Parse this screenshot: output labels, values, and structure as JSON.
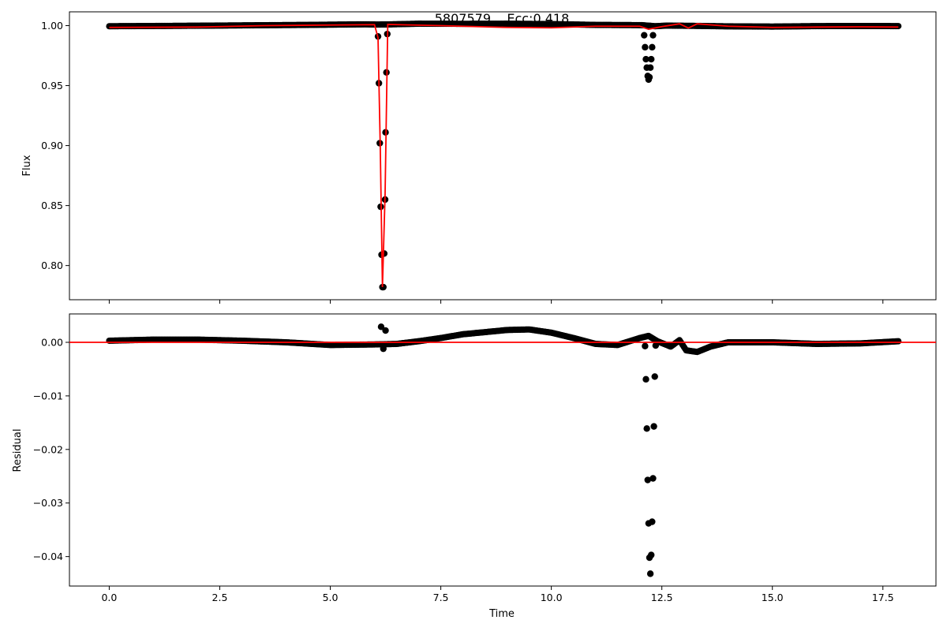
{
  "figure": {
    "title": "5807579    Ecc:0.418"
  },
  "chart_data": [
    {
      "type": "scatter",
      "panel": "top",
      "title": "5807579    Ecc:0.418",
      "xlabel": "",
      "ylabel": "Flux",
      "xlim": [
        -0.9,
        18.7
      ],
      "ylim": [
        0.7715,
        1.0115
      ],
      "xticks": [
        0.0,
        2.5,
        5.0,
        7.5,
        10.0,
        12.5,
        15.0,
        17.5
      ],
      "xtick_labels_visible": false,
      "yticks": [
        0.8,
        0.85,
        0.9,
        0.95,
        1.0
      ],
      "ytick_labels": [
        "0.80",
        "0.85",
        "0.90",
        "0.95",
        "1.00"
      ],
      "series": [
        {
          "kind": "scatter",
          "color": "#000000",
          "baseline": [
            [
              0.0,
              0.9995
            ],
            [
              1.5,
              0.9998
            ],
            [
              3.0,
              1.0002
            ],
            [
              4.5,
              1.0006
            ],
            [
              5.8,
              1.0011
            ],
            [
              6.05,
              1.0009
            ],
            [
              6.3,
              1.001
            ],
            [
              7.0,
              1.0016
            ],
            [
              8.0,
              1.0015
            ],
            [
              9.0,
              1.0016
            ],
            [
              10.0,
              1.0013
            ],
            [
              11.0,
              1.0006
            ],
            [
              12.05,
              1.0004
            ],
            [
              12.35,
              0.9995
            ],
            [
              12.6,
              1.0
            ],
            [
              13.2,
              0.9998
            ],
            [
              14.0,
              0.9994
            ],
            [
              15.0,
              0.9992
            ],
            [
              16.0,
              0.9996
            ],
            [
              17.0,
              0.9997
            ],
            [
              17.85,
              0.9996
            ]
          ],
          "points": [
            [
              6.08,
              0.991
            ],
            [
              6.1,
              0.952
            ],
            [
              6.12,
              0.902
            ],
            [
              6.14,
              0.849
            ],
            [
              6.16,
              0.809
            ],
            [
              6.18,
              0.782
            ],
            [
              6.2,
              0.782
            ],
            [
              6.22,
              0.81
            ],
            [
              6.24,
              0.855
            ],
            [
              6.25,
              0.911
            ],
            [
              6.27,
              0.961
            ],
            [
              6.29,
              0.993
            ],
            [
              12.1,
              0.992
            ],
            [
              12.12,
              0.982
            ],
            [
              12.14,
              0.972
            ],
            [
              12.16,
              0.965
            ],
            [
              12.18,
              0.958
            ],
            [
              12.2,
              0.955
            ],
            [
              12.22,
              0.957
            ],
            [
              12.24,
              0.965
            ],
            [
              12.26,
              0.972
            ],
            [
              12.28,
              0.982
            ],
            [
              12.3,
              0.992
            ]
          ]
        },
        {
          "kind": "line",
          "color": "#ff0000",
          "points": [
            [
              0.0,
              0.9985
            ],
            [
              2.0,
              0.9988
            ],
            [
              3.5,
              1.0
            ],
            [
              5.0,
              1.0005
            ],
            [
              6.0,
              1.0008
            ],
            [
              6.08,
              0.99
            ],
            [
              6.13,
              0.9
            ],
            [
              6.18,
              0.782
            ],
            [
              6.24,
              0.86
            ],
            [
              6.3,
              1.001
            ],
            [
              7.5,
              1.0
            ],
            [
              9.0,
              0.9985
            ],
            [
              10.0,
              0.9982
            ],
            [
              11.0,
              0.9995
            ],
            [
              12.0,
              0.9995
            ],
            [
              12.2,
              0.997
            ],
            [
              12.5,
              0.9992
            ],
            [
              12.9,
              1.0015
            ],
            [
              13.1,
              0.998
            ],
            [
              13.3,
              1.0015
            ],
            [
              14.0,
              0.9995
            ],
            [
              15.0,
              0.9985
            ],
            [
              16.0,
              0.9988
            ],
            [
              17.0,
              0.999
            ],
            [
              17.85,
              0.9988
            ]
          ]
        }
      ]
    },
    {
      "type": "scatter",
      "panel": "bottom",
      "title": "",
      "xlabel": "Time",
      "ylabel": "Residual",
      "xlim": [
        -0.9,
        18.7
      ],
      "ylim": [
        -0.0455,
        0.0053
      ],
      "xticks": [
        0.0,
        2.5,
        5.0,
        7.5,
        10.0,
        12.5,
        15.0,
        17.5
      ],
      "xtick_labels": [
        "0.0",
        "2.5",
        "5.0",
        "7.5",
        "10.0",
        "12.5",
        "15.0",
        "17.5"
      ],
      "yticks": [
        -0.04,
        -0.03,
        -0.02,
        -0.01,
        0.0
      ],
      "ytick_labels": [
        "−0.04",
        "−0.03",
        "−0.02",
        "−0.01",
        "0.00"
      ],
      "series": [
        {
          "kind": "scatter",
          "color": "#000000",
          "baseline": [
            [
              0.0,
              0.0003
            ],
            [
              1.0,
              0.0005
            ],
            [
              2.0,
              0.0005
            ],
            [
              3.0,
              0.0003
            ],
            [
              4.0,
              0.0
            ],
            [
              5.0,
              -0.0005
            ],
            [
              6.0,
              -0.0004
            ],
            [
              6.5,
              -0.0003
            ],
            [
              7.0,
              0.0002
            ],
            [
              7.5,
              0.0008
            ],
            [
              8.0,
              0.0015
            ],
            [
              9.0,
              0.0023
            ],
            [
              9.5,
              0.0024
            ],
            [
              10.0,
              0.0018
            ],
            [
              10.5,
              0.0008
            ],
            [
              11.0,
              -0.0003
            ],
            [
              11.5,
              -0.0005
            ],
            [
              12.0,
              0.0008
            ],
            [
              12.2,
              0.0012
            ],
            [
              12.4,
              0.0002
            ],
            [
              12.7,
              -0.0008
            ],
            [
              12.9,
              0.0004
            ],
            [
              13.05,
              -0.0015
            ],
            [
              13.3,
              -0.0018
            ],
            [
              13.6,
              -0.0008
            ],
            [
              14.0,
              0.0
            ],
            [
              15.0,
              0.0
            ],
            [
              16.0,
              -0.0003
            ],
            [
              17.0,
              -0.0002
            ],
            [
              17.85,
              0.0002
            ]
          ],
          "points": [
            [
              6.15,
              0.0029
            ],
            [
              6.25,
              0.0022
            ],
            [
              6.2,
              -0.0012
            ],
            [
              12.12,
              -0.0007
            ],
            [
              12.14,
              -0.0069
            ],
            [
              12.16,
              -0.0161
            ],
            [
              12.18,
              -0.0257
            ],
            [
              12.2,
              -0.0338
            ],
            [
              12.22,
              -0.0402
            ],
            [
              12.24,
              -0.0432
            ],
            [
              12.26,
              -0.0397
            ],
            [
              12.28,
              -0.0335
            ],
            [
              12.3,
              -0.0254
            ],
            [
              12.32,
              -0.0157
            ],
            [
              12.34,
              -0.0064
            ],
            [
              12.36,
              -0.0006
            ]
          ]
        },
        {
          "kind": "hline",
          "color": "#ff0000",
          "y": 0.0
        }
      ]
    }
  ]
}
